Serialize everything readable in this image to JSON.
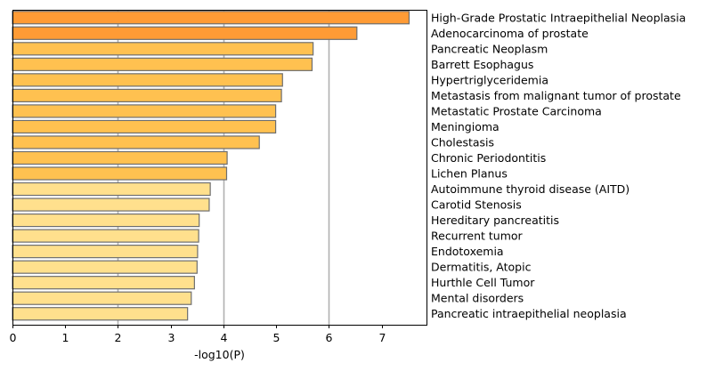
{
  "chart_data": {
    "type": "bar",
    "orientation": "horizontal",
    "title": "",
    "xlabel": "-log10(P)",
    "ylabel": "",
    "xlim": [
      0,
      7.85
    ],
    "xticks": [
      0,
      1,
      2,
      3,
      4,
      5,
      6,
      7
    ],
    "grid_x": [
      2,
      4,
      6
    ],
    "grid": true,
    "category_label_side": "right",
    "colors": {
      "dark": "#ff9b35",
      "mid": "#ffc150",
      "light": "#ffe08d",
      "bar_edge": "#6e6e6e",
      "grid": "#b0b0b0"
    },
    "categories": [
      "High-Grade Prostatic Intraepithelial Neoplasia",
      "Adenocarcinoma of prostate",
      "Pancreatic Neoplasm",
      "Barrett Esophagus",
      "Hypertriglyceridemia",
      "Metastasis from malignant tumor of prostate",
      "Metastatic Prostate Carcinoma",
      "Meningioma",
      "Cholestasis",
      "Chronic Periodontitis",
      "Lichen Planus",
      "Autoimmune thyroid disease (AITD)",
      "Carotid Stenosis",
      "Hereditary pancreatitis",
      "Recurrent tumor",
      "Endotoxemia",
      "Dermatitis, Atopic",
      "Hurthle Cell Tumor",
      "Mental disorders",
      "Pancreatic intraepithelial neoplasia"
    ],
    "values": [
      7.52,
      6.53,
      5.7,
      5.68,
      5.12,
      5.1,
      4.99,
      4.99,
      4.68,
      4.07,
      4.06,
      3.75,
      3.73,
      3.54,
      3.53,
      3.51,
      3.5,
      3.45,
      3.39,
      3.32
    ],
    "color_levels": [
      "dark",
      "dark",
      "mid",
      "mid",
      "mid",
      "mid",
      "mid",
      "mid",
      "mid",
      "mid",
      "mid",
      "light",
      "light",
      "light",
      "light",
      "light",
      "light",
      "light",
      "light",
      "light"
    ]
  }
}
